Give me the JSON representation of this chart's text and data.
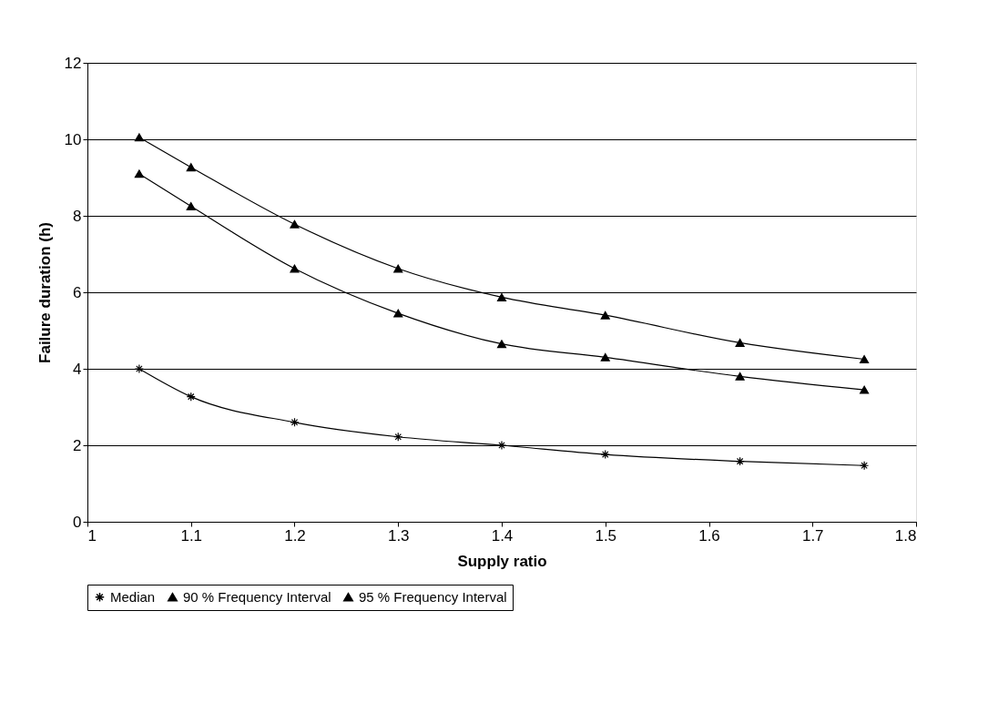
{
  "chart_data": {
    "type": "line",
    "xlabel": "Supply ratio",
    "ylabel": "Failure duration  (h)",
    "x": [
      1.05,
      1.1,
      1.2,
      1.3,
      1.4,
      1.5,
      1.63,
      1.75
    ],
    "series": [
      {
        "name": "Median",
        "color": "#000000",
        "marker": "cross",
        "values": [
          4.0,
          3.27,
          2.6,
          2.22,
          2.0,
          1.76,
          1.58,
          1.47
        ]
      },
      {
        "name": "90 % Frequency Interval",
        "color": "#000000",
        "marker": "triangle",
        "values": [
          9.1,
          8.25,
          6.62,
          5.45,
          4.65,
          4.3,
          3.8,
          3.45
        ]
      },
      {
        "name": "95 % Frequency Interval",
        "color": "#000000",
        "marker": "triangle",
        "values": [
          10.05,
          9.27,
          7.78,
          6.62,
          5.87,
          5.4,
          4.68,
          4.25
        ]
      }
    ],
    "xlim": [
      1,
      1.8
    ],
    "xticks": [
      {
        "value": 1,
        "label": "1"
      },
      1.1,
      1.2,
      1.3,
      1.4,
      1.5,
      1.6,
      1.7,
      1.8
    ],
    "ylim": [
      0,
      12
    ],
    "yticks": [
      0,
      2,
      4,
      6,
      8,
      10,
      12
    ],
    "grid": "y",
    "legend": "bottom",
    "line_style": "solid"
  }
}
